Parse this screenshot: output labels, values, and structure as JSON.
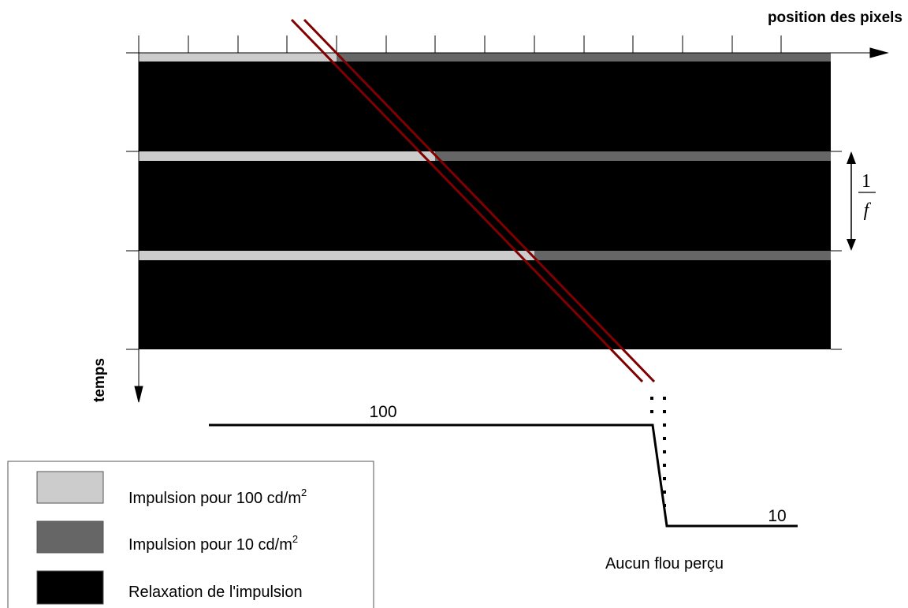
{
  "axes": {
    "x_label": "position des pixels",
    "y_label": "temps"
  },
  "period_label": {
    "numerator": "1",
    "denominator": "f"
  },
  "profile": {
    "high_value": "100",
    "low_value": "10",
    "caption": "Aucun flou perçu"
  },
  "legend": {
    "items": [
      {
        "prefix": "Impulsion pour 100 cd/m",
        "sup": "2",
        "color": "#cccccc"
      },
      {
        "prefix": "Impulsion pour 10 cd/m",
        "sup": "2",
        "color": "#666666"
      },
      {
        "prefix": "Relaxation de l'impulsion",
        "sup": "",
        "color": "#000000"
      }
    ]
  },
  "colors": {
    "impulse_high": "#cccccc",
    "impulse_low": "#666666",
    "relaxation": "#000000",
    "eye_tracking": "#7f0000"
  }
}
